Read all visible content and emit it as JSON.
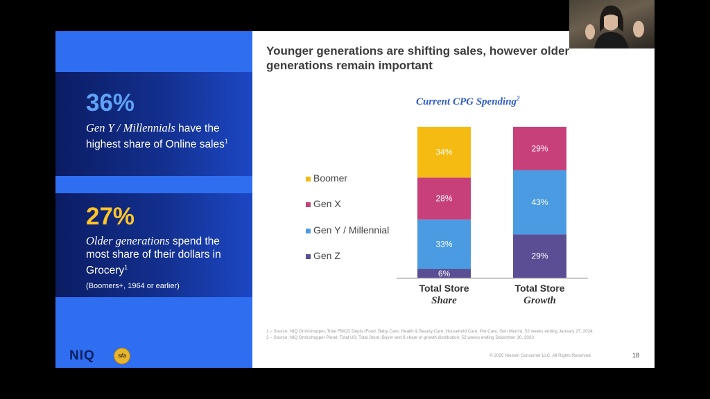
{
  "left_panel": {
    "stat1": {
      "value": "36%",
      "italic": "Gen Y / Millennials",
      "text1": " have the highest share of Online sales",
      "sup": "1"
    },
    "stat2": {
      "value": "27%",
      "italic": "Older generations",
      "text1": " spend the most share of their dollars in Grocery",
      "sup": "1",
      "note": "(Boomers+, 1964 or earlier)"
    },
    "logo_text": "NIQ",
    "badge_text": "sfa"
  },
  "slide": {
    "title": "Younger generations are shifting sales, however older generations remain important",
    "chart_title": "Current CPG Spending",
    "chart_title_sup": "2",
    "footnote1": "1 – Source: NIQ Omnishopper, Total FMCG Depts (Food, Baby Care, Health & Beauty Care, Household Care, Pet Care, Gen Merch); 52 weeks ending January 27, 2024",
    "footnote2": "2 – Source: NIQ Omnishopper Panel; Total US; Total Store; Buyer and $ share of growth distribution; 52 weeks ending December 30, 2023",
    "copyright": "© 2025 Nielsen Consumer LLC. All Rights Reserved.",
    "page_number": "18"
  },
  "chart_data": {
    "type": "bar",
    "stacked": true,
    "title": "Current CPG Spending",
    "categories": [
      {
        "line1": "Total Store",
        "line2": "Share"
      },
      {
        "line1": "Total Store",
        "line2": "Growth"
      }
    ],
    "series": [
      {
        "name": "Gen Z",
        "color": "#5b4e94",
        "values": [
          6,
          29
        ],
        "labels": [
          "6%",
          "29%"
        ]
      },
      {
        "name": "Gen Y / Millennial",
        "color": "#4b9be2",
        "values": [
          33,
          43
        ],
        "labels": [
          "33%",
          "43%"
        ]
      },
      {
        "name": "Gen X",
        "color": "#c8407a",
        "values": [
          28,
          29
        ],
        "labels": [
          "28%",
          "29%"
        ]
      },
      {
        "name": "Boomer",
        "color": "#f5bb12",
        "values": [
          34,
          0
        ],
        "labels": [
          "34%",
          ""
        ]
      }
    ],
    "legend_order": [
      "Boomer",
      "Gen X",
      "Gen Y / Millennial",
      "Gen Z"
    ],
    "ylim": [
      0,
      101
    ]
  }
}
